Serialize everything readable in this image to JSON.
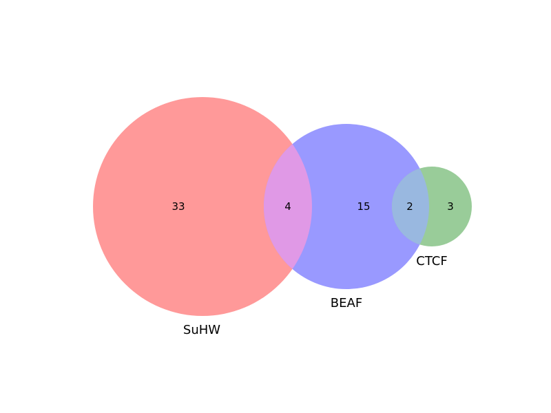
{
  "diagram": {
    "type": "venn3",
    "sets": [
      {
        "name": "SuHW",
        "color": "#ff9999"
      },
      {
        "name": "BEAF",
        "color": "#9999ff"
      },
      {
        "name": "CTCF",
        "color": "#99cc99"
      }
    ],
    "regions": [
      {
        "sets": [
          "SuHW"
        ],
        "count": "33"
      },
      {
        "sets": [
          "SuHW",
          "BEAF"
        ],
        "count": "4"
      },
      {
        "sets": [
          "BEAF"
        ],
        "count": "15"
      },
      {
        "sets": [
          "BEAF",
          "CTCF"
        ],
        "count": "2"
      },
      {
        "sets": [
          "CTCF"
        ],
        "count": "3"
      }
    ],
    "overlap_colors": {
      "SuHW_BEAF": "#e099e6",
      "BEAF_CTCF": "#99b8e0"
    }
  }
}
